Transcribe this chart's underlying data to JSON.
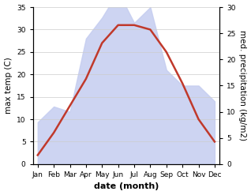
{
  "months": [
    "Jan",
    "Feb",
    "Mar",
    "Apr",
    "May",
    "Jun",
    "Jul",
    "Aug",
    "Sep",
    "Oct",
    "Nov",
    "Dec"
  ],
  "temperature": [
    2,
    7,
    13,
    19,
    27,
    31,
    31,
    30,
    25,
    18,
    10,
    5
  ],
  "precipitation": [
    8,
    11,
    10,
    24,
    28,
    33,
    27,
    30,
    18,
    15,
    15,
    12
  ],
  "temp_color": "#c0392b",
  "precip_fill_color": "#c5cdf0",
  "precip_alpha": 0.85,
  "ylim_temp": [
    0,
    35
  ],
  "ylim_precip": [
    0,
    30
  ],
  "yticks_temp": [
    0,
    5,
    10,
    15,
    20,
    25,
    30,
    35
  ],
  "yticks_precip": [
    0,
    5,
    10,
    15,
    20,
    25,
    30
  ],
  "ylabel_left": "max temp (C)",
  "ylabel_right": "med. precipitation (kg/m2)",
  "xlabel": "date (month)",
  "bg_color": "#ffffff",
  "grid_color": "#cccccc",
  "tick_fontsize": 6.5,
  "label_fontsize": 7.5,
  "xlabel_fontsize": 8,
  "temp_linewidth": 1.8
}
